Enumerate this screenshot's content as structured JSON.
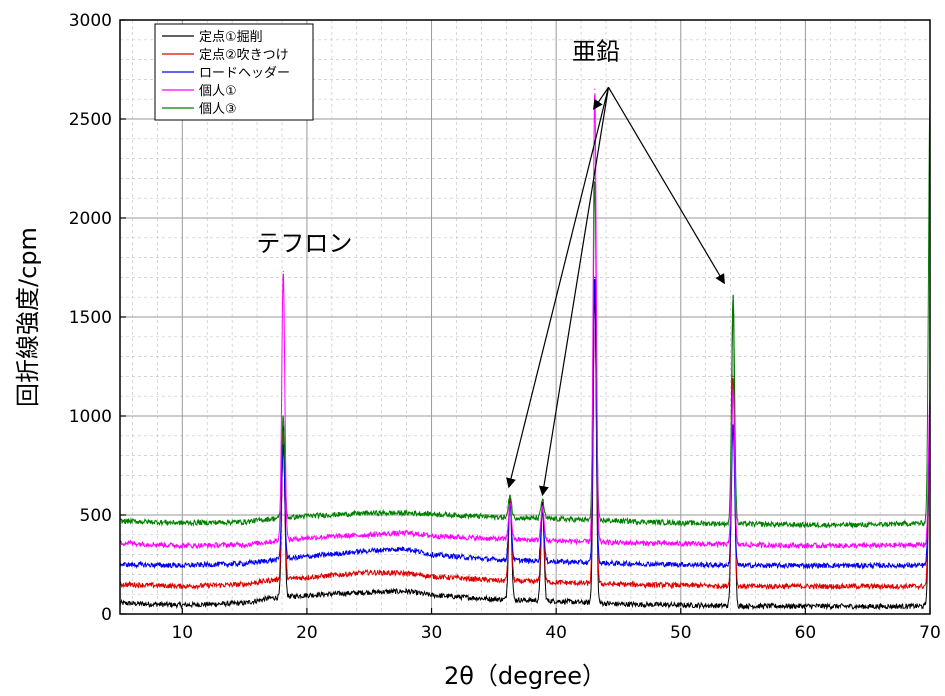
{
  "chart_data": {
    "type": "line",
    "title": "",
    "xlabel": "2θ（degree）",
    "ylabel": "回折線強度/cpm",
    "xlim": [
      5,
      70
    ],
    "ylim": [
      0,
      3000
    ],
    "x_ticks": [
      "10",
      "20",
      "30",
      "40",
      "50",
      "60",
      "70"
    ],
    "y_ticks": [
      "0",
      "500",
      "1000",
      "1500",
      "2000",
      "2500",
      "3000"
    ],
    "grid": true,
    "legend_position": "top-left",
    "series": [
      {
        "name": "定点①掘削",
        "color": "#000000",
        "baseline": [
          [
            5,
            55
          ],
          [
            10,
            45
          ],
          [
            15,
            55
          ],
          [
            17,
            80
          ],
          [
            20,
            95
          ],
          [
            25,
            110
          ],
          [
            28,
            115
          ],
          [
            30,
            95
          ],
          [
            35,
            75
          ],
          [
            40,
            65
          ],
          [
            45,
            50
          ],
          [
            50,
            45
          ],
          [
            55,
            40
          ],
          [
            60,
            40
          ],
          [
            65,
            38
          ],
          [
            70,
            40
          ]
        ],
        "peaks": [
          [
            18.1,
            950
          ],
          [
            36.3,
            600
          ],
          [
            38.9,
            560
          ],
          [
            43.1,
            1650
          ],
          [
            54.2,
            1600
          ],
          [
            70,
            1000
          ]
        ]
      },
      {
        "name": "定点②吹きつけ",
        "color": "#e00000",
        "baseline": [
          [
            5,
            150
          ],
          [
            10,
            140
          ],
          [
            15,
            150
          ],
          [
            17,
            170
          ],
          [
            20,
            185
          ],
          [
            25,
            210
          ],
          [
            28,
            205
          ],
          [
            30,
            190
          ],
          [
            35,
            170
          ],
          [
            40,
            160
          ],
          [
            45,
            150
          ],
          [
            50,
            145
          ],
          [
            55,
            140
          ],
          [
            60,
            140
          ],
          [
            65,
            140
          ],
          [
            70,
            140
          ]
        ],
        "peaks": [
          [
            18.1,
            920
          ],
          [
            36.3,
            580
          ],
          [
            38.9,
            540
          ],
          [
            43.1,
            1700
          ],
          [
            54.2,
            1200
          ],
          [
            70,
            1000
          ]
        ]
      },
      {
        "name": "ロードヘッダー",
        "color": "#0000ee",
        "baseline": [
          [
            5,
            250
          ],
          [
            10,
            245
          ],
          [
            15,
            255
          ],
          [
            17,
            270
          ],
          [
            20,
            290
          ],
          [
            25,
            320
          ],
          [
            28,
            330
          ],
          [
            30,
            300
          ],
          [
            35,
            275
          ],
          [
            40,
            265
          ],
          [
            45,
            255
          ],
          [
            50,
            250
          ],
          [
            55,
            245
          ],
          [
            60,
            245
          ],
          [
            65,
            245
          ],
          [
            70,
            245
          ]
        ],
        "peaks": [
          [
            18.1,
            850
          ],
          [
            36.3,
            560
          ],
          [
            38.9,
            520
          ],
          [
            43.1,
            1700
          ],
          [
            54.2,
            950
          ],
          [
            70,
            1050
          ]
        ]
      },
      {
        "name": "個人①",
        "color": "#ff00ff",
        "baseline": [
          [
            5,
            360
          ],
          [
            10,
            345
          ],
          [
            15,
            350
          ],
          [
            17,
            365
          ],
          [
            20,
            385
          ],
          [
            25,
            400
          ],
          [
            28,
            410
          ],
          [
            30,
            395
          ],
          [
            35,
            380
          ],
          [
            40,
            370
          ],
          [
            45,
            360
          ],
          [
            50,
            355
          ],
          [
            55,
            350
          ],
          [
            60,
            345
          ],
          [
            65,
            345
          ],
          [
            70,
            350
          ]
        ],
        "peaks": [
          [
            18.1,
            1730
          ],
          [
            36.3,
            560
          ],
          [
            38.9,
            540
          ],
          [
            43.1,
            2650
          ],
          [
            54.2,
            1150
          ],
          [
            70,
            1100
          ]
        ]
      },
      {
        "name": "個人③",
        "color": "#008000",
        "baseline": [
          [
            5,
            470
          ],
          [
            10,
            460
          ],
          [
            15,
            465
          ],
          [
            17,
            480
          ],
          [
            20,
            495
          ],
          [
            25,
            510
          ],
          [
            28,
            510
          ],
          [
            30,
            505
          ],
          [
            35,
            490
          ],
          [
            40,
            480
          ],
          [
            45,
            470
          ],
          [
            50,
            460
          ],
          [
            55,
            455
          ],
          [
            60,
            450
          ],
          [
            65,
            450
          ],
          [
            70,
            460
          ]
        ],
        "peaks": [
          [
            18.1,
            1000
          ],
          [
            36.3,
            600
          ],
          [
            38.9,
            580
          ],
          [
            43.1,
            2200
          ],
          [
            54.2,
            1610
          ],
          [
            70,
            2600
          ]
        ]
      }
    ],
    "annotations": [
      {
        "text": "テフロン",
        "x": 19.8,
        "y": 1830
      },
      {
        "text": "亜鉛",
        "x": 43.2,
        "y": 2800,
        "arrow_from": [
          44.2,
          2660
        ],
        "arrow_to": [
          [
            36.2,
            640
          ],
          [
            38.9,
            600
          ],
          [
            43.0,
            2550
          ],
          [
            53.5,
            1670
          ]
        ]
      }
    ]
  }
}
